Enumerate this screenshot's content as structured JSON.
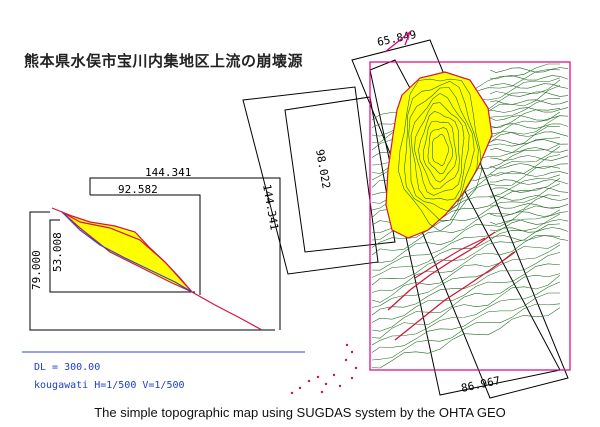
{
  "title": "熊本県水俣市宝川内集地区上流の崩壊源",
  "caption": "The simple topographic map using SUGDAS system by the OHTA  GEO",
  "section": {
    "dl_label": "DL = 300.00",
    "scale_label": "kougawati H=1/500 V=1/500"
  },
  "dimensions": {
    "top_width": "144.341",
    "inner_width": "92.582",
    "left_height": "79.000",
    "inner_height": "53.008"
  },
  "plan": {
    "rotated_width": "144.341",
    "rotated_inner": "98.022",
    "top_label": "65.849",
    "bottom_label": "86.967"
  },
  "colors": {
    "slide_fill": "#ffff00",
    "slide_outline": "#d4143c",
    "contour": "#1f6b1f",
    "dimension_line": "#000000",
    "datum_line": "#2b4ad6"
  }
}
